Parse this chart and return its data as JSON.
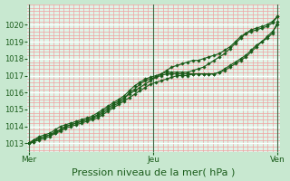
{
  "background_color": "#c8e8d0",
  "plot_bg_color": "#e0f4e8",
  "grid_color_white": "#ffffff",
  "grid_color_red": "#f0a0a0",
  "line_color": "#1a5c1a",
  "marker_color": "#1a5c1a",
  "xlabel": "Pression niveau de la mer( hPa )",
  "xlabel_fontsize": 8,
  "tick_label_color": "#1a5c1a",
  "tick_label_fontsize": 6,
  "ylim": [
    1012.5,
    1021.2
  ],
  "yticks": [
    1013,
    1014,
    1015,
    1016,
    1017,
    1018,
    1019,
    1020
  ],
  "xtick_labels": [
    "Mer",
    "Jeu",
    "Ven"
  ],
  "xtick_positions": [
    0.0,
    0.5,
    1.0
  ],
  "vline_x": [
    0.0,
    0.5,
    1.0
  ],
  "num_points": 48,
  "series": [
    [
      1013.0,
      1013.2,
      1013.3,
      1013.4,
      1013.5,
      1013.6,
      1013.8,
      1014.0,
      1014.1,
      1014.2,
      1014.3,
      1014.4,
      1014.5,
      1014.7,
      1014.9,
      1015.1,
      1015.3,
      1015.5,
      1015.7,
      1015.9,
      1016.1,
      1016.3,
      1016.5,
      1016.7,
      1016.9,
      1017.1,
      1017.3,
      1017.5,
      1017.6,
      1017.7,
      1017.8,
      1017.9,
      1017.9,
      1018.0,
      1018.1,
      1018.2,
      1018.3,
      1018.5,
      1018.7,
      1019.0,
      1019.3,
      1019.5,
      1019.6,
      1019.7,
      1019.8,
      1019.9,
      1020.1,
      1020.5
    ],
    [
      1013.0,
      1013.1,
      1013.3,
      1013.4,
      1013.5,
      1013.7,
      1013.8,
      1014.0,
      1014.1,
      1014.2,
      1014.3,
      1014.4,
      1014.5,
      1014.6,
      1014.8,
      1015.0,
      1015.2,
      1015.4,
      1015.6,
      1016.0,
      1016.2,
      1016.5,
      1016.7,
      1016.8,
      1016.9,
      1017.0,
      1017.1,
      1017.1,
      1017.1,
      1017.1,
      1017.1,
      1017.1,
      1017.1,
      1017.1,
      1017.1,
      1017.1,
      1017.2,
      1017.4,
      1017.6,
      1017.8,
      1018.0,
      1018.2,
      1018.5,
      1018.8,
      1019.0,
      1019.2,
      1019.5,
      1020.2
    ],
    [
      1013.0,
      1013.1,
      1013.2,
      1013.3,
      1013.4,
      1013.6,
      1013.7,
      1013.9,
      1014.0,
      1014.1,
      1014.2,
      1014.3,
      1014.4,
      1014.5,
      1014.7,
      1014.9,
      1015.1,
      1015.3,
      1015.5,
      1015.7,
      1015.9,
      1016.1,
      1016.3,
      1016.5,
      1016.6,
      1016.7,
      1016.8,
      1016.9,
      1017.0,
      1017.0,
      1017.0,
      1017.1,
      1017.1,
      1017.1,
      1017.1,
      1017.1,
      1017.2,
      1017.3,
      1017.5,
      1017.7,
      1017.9,
      1018.1,
      1018.4,
      1018.7,
      1019.0,
      1019.3,
      1019.6,
      1020.0
    ],
    [
      1013.0,
      1013.2,
      1013.4,
      1013.5,
      1013.6,
      1013.8,
      1014.0,
      1014.1,
      1014.2,
      1014.3,
      1014.4,
      1014.5,
      1014.6,
      1014.8,
      1015.0,
      1015.2,
      1015.4,
      1015.6,
      1015.8,
      1016.1,
      1016.4,
      1016.6,
      1016.8,
      1016.9,
      1017.0,
      1017.1,
      1017.2,
      1017.2,
      1017.2,
      1017.2,
      1017.2,
      1017.3,
      1017.4,
      1017.5,
      1017.7,
      1017.9,
      1018.1,
      1018.3,
      1018.6,
      1018.9,
      1019.2,
      1019.5,
      1019.7,
      1019.8,
      1019.9,
      1020.0,
      1020.2,
      1020.5
    ]
  ]
}
